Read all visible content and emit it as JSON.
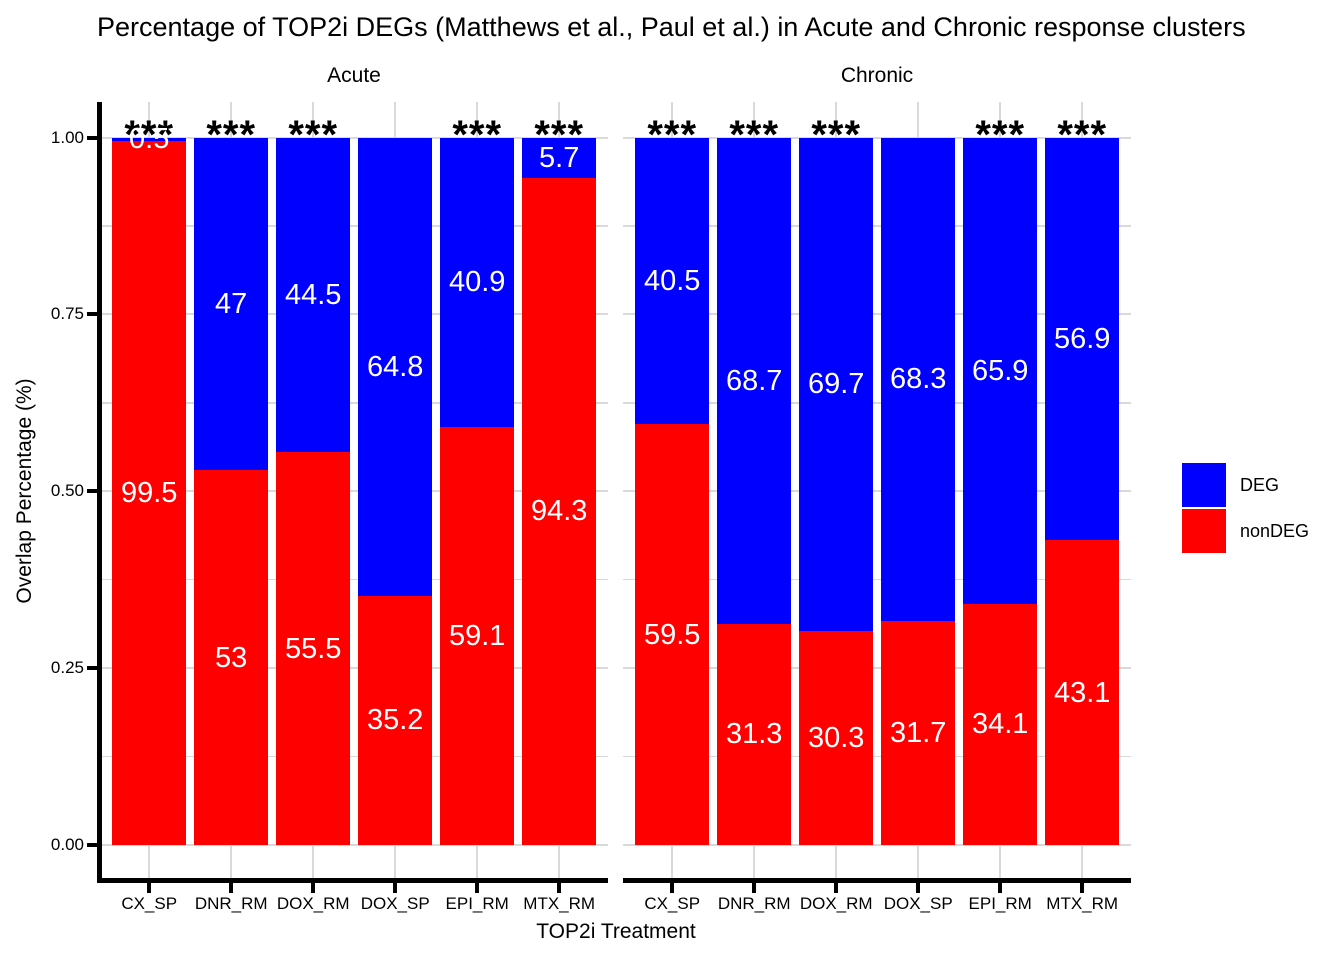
{
  "title": "Percentage of TOP2i DEGs (Matthews et al., Paul et al.) in Acute and Chronic response clusters",
  "y_axis": {
    "title": "Overlap Percentage (%)",
    "ticks": [
      {
        "value": 0,
        "label": "0.00"
      },
      {
        "value": 0.25,
        "label": "0.25"
      },
      {
        "value": 0.5,
        "label": "0.50"
      },
      {
        "value": 0.75,
        "label": "0.75"
      },
      {
        "value": 1,
        "label": "1.00"
      }
    ],
    "minor_ticks": [
      0.125,
      0.375,
      0.625,
      0.875
    ]
  },
  "x_axis": {
    "title": "TOP2i Treatment"
  },
  "legend": {
    "items": [
      {
        "label": "DEG",
        "color": "#0000ff"
      },
      {
        "label": "nonDEG",
        "color": "#ff0000"
      }
    ]
  },
  "colors": {
    "DEG": "#0000ff",
    "nonDEG": "#ff0000",
    "grid": "#d9d9d9",
    "axis": "#000000",
    "bar_label": "#ffffff"
  },
  "chart_data": {
    "type": "bar",
    "stacked": true,
    "orientation": "vertical",
    "title": "Percentage of TOP2i DEGs (Matthews et al., Paul et al.) in Acute and Chronic response clusters",
    "xlabel": "TOP2i Treatment",
    "ylabel": "Overlap Percentage (%)",
    "ylim": [
      0,
      1
    ],
    "grid": true,
    "legend_position": "right",
    "categories": [
      "CX_SP",
      "DNR_RM",
      "DOX_RM",
      "DOX_SP",
      "EPI_RM",
      "MTX_RM"
    ],
    "facets": [
      {
        "label": "Acute",
        "series": [
          {
            "name": "nonDEG",
            "values": [
              99.5,
              53,
              55.5,
              35.2,
              59.1,
              94.3
            ],
            "labels": [
              "99.5",
              "53",
              "55.5",
              "35.2",
              "59.1",
              "94.3"
            ]
          },
          {
            "name": "DEG",
            "values": [
              0.5,
              47,
              44.5,
              64.8,
              40.9,
              5.7
            ],
            "labels": [
              "0.5",
              "47",
              "44.5",
              "64.8",
              "40.9",
              "5.7"
            ]
          }
        ],
        "significance": [
          "***",
          "***",
          "***",
          "",
          "***",
          "***"
        ]
      },
      {
        "label": "Chronic",
        "series": [
          {
            "name": "nonDEG",
            "values": [
              59.5,
              31.3,
              30.3,
              31.7,
              34.1,
              43.1
            ],
            "labels": [
              "59.5",
              "31.3",
              "30.3",
              "31.7",
              "34.1",
              "43.1"
            ]
          },
          {
            "name": "DEG",
            "values": [
              40.5,
              68.7,
              69.7,
              68.3,
              65.9,
              56.9
            ],
            "labels": [
              "40.5",
              "68.7",
              "69.7",
              "68.3",
              "65.9",
              "56.9"
            ]
          }
        ],
        "significance": [
          "***",
          "***",
          "***",
          "",
          "***",
          "***"
        ]
      }
    ]
  }
}
